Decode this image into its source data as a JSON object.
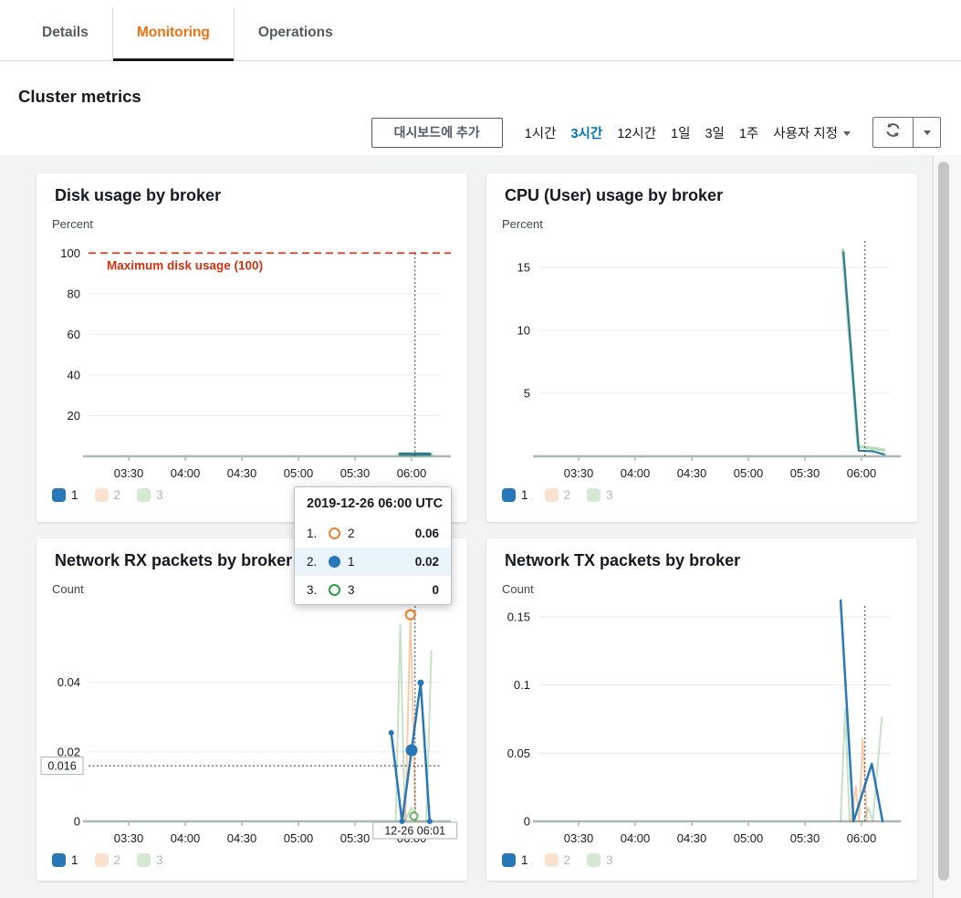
{
  "tabs": [
    {
      "label": "Details",
      "active": false
    },
    {
      "label": "Monitoring",
      "active": true
    },
    {
      "label": "Operations",
      "active": false
    }
  ],
  "page_title": "Cluster metrics",
  "toolbar": {
    "add_button": "대시보드에 추가",
    "ranges": [
      {
        "label": "1시간",
        "active": false
      },
      {
        "label": "3시간",
        "active": true
      },
      {
        "label": "12시간",
        "active": false
      },
      {
        "label": "1일",
        "active": false
      },
      {
        "label": "3일",
        "active": false
      },
      {
        "label": "1주",
        "active": false
      },
      {
        "label": "사용자 지정",
        "active": false,
        "caret": true
      }
    ]
  },
  "colors": {
    "accent_orange": "#ec7211",
    "link_blue": "#0073bb",
    "annotation_red": "#d13212",
    "series1_blue": "#2878b8",
    "series2_orange": "#e8842f",
    "series3_green": "#2f9e41"
  },
  "legend": [
    {
      "label": "1",
      "color": "#2878b8",
      "muted": false
    },
    {
      "label": "2",
      "color": "#fbe2cf",
      "muted": true
    },
    {
      "label": "3",
      "color": "#d3e9d3",
      "muted": true
    }
  ],
  "xaxis": {
    "min": 3.145,
    "max": 6.25,
    "ticks": [
      {
        "v": 3.5,
        "label": "03:30"
      },
      {
        "v": 4.0,
        "label": "04:00"
      },
      {
        "v": 4.5,
        "label": "04:30"
      },
      {
        "v": 5.0,
        "label": "05:00"
      },
      {
        "v": 5.5,
        "label": "05:30"
      },
      {
        "v": 6.0,
        "label": "06:00"
      }
    ]
  },
  "charts": [
    {
      "type": "line",
      "title": "Disk usage by broker",
      "ylabel": "Percent",
      "y": {
        "max": 106,
        "ticks": [
          100,
          80,
          60,
          40,
          20
        ]
      },
      "annotation": {
        "value": 100,
        "label": "Maximum disk usage (100)"
      },
      "crosshair": {
        "t": 6.03
      },
      "series": [
        {
          "name": "3",
          "color": "#74b976",
          "opacity": 0.4,
          "width": 5,
          "points": [
            [
              5.89,
              0.9
            ],
            [
              6.17,
              0.9
            ]
          ]
        },
        {
          "name": "1",
          "color": "#2e7d8c",
          "opacity": 1,
          "width": 3.5,
          "points": [
            [
              5.9,
              1.1
            ],
            [
              6.16,
              1.1
            ]
          ]
        }
      ]
    },
    {
      "type": "line",
      "title": "CPU (User) usage by broker",
      "ylabel": "Percent",
      "y": {
        "max": 17.1,
        "ticks": [
          15,
          10,
          5
        ]
      },
      "crosshair": {
        "t": 6.03
      },
      "series": [
        {
          "name": "3",
          "color": "#74b976",
          "opacity": 0.5,
          "width": 3.5,
          "points": [
            [
              5.835,
              16.4
            ],
            [
              5.97,
              0.8
            ],
            [
              6.2,
              0.5
            ]
          ]
        },
        {
          "name": "1",
          "color": "#2d7b96",
          "opacity": 1,
          "width": 2.2,
          "points": [
            [
              5.84,
              16.2
            ],
            [
              5.975,
              0.45
            ],
            [
              6.1,
              0.4
            ],
            [
              6.2,
              0.15
            ]
          ]
        }
      ]
    },
    {
      "type": "line",
      "title": "Network RX packets by broker",
      "ylabel": "Count",
      "y": {
        "max": 0.062,
        "ticks": [
          0.04,
          0.02,
          0
        ]
      },
      "crosshair": {
        "t": 6.03,
        "h": 0.016,
        "hlabel": "0.016",
        "xlabel": "12-26 06:01"
      },
      "series": [
        {
          "name": "3",
          "color": "#5aab5c",
          "opacity": 0.35,
          "width": 2,
          "points": [
            [
              5.86,
              0
            ],
            [
              5.9,
              0.0565
            ],
            [
              5.94,
              0
            ],
            [
              6.0,
              0.004
            ],
            [
              6.05,
              0
            ],
            [
              6.13,
              0
            ],
            [
              6.175,
              0.049
            ]
          ],
          "markers": [
            {
              "t": 6.02,
              "v": 0.0015,
              "r": 4,
              "type": "open"
            }
          ]
        },
        {
          "name": "2",
          "color": "#e8822e",
          "opacity": 0.4,
          "width": 2,
          "points": [
            [
              5.945,
              0
            ],
            [
              5.99,
              0.0595
            ],
            [
              6.035,
              0
            ]
          ],
          "markers": [
            {
              "t": 5.99,
              "v": 0.0595,
              "r": 5,
              "type": "open"
            }
          ]
        },
        {
          "name": "1",
          "color": "#2878b8",
          "opacity": 1,
          "width": 2.5,
          "points": [
            [
              5.82,
              0.0255
            ],
            [
              5.915,
              0
            ],
            [
              6.0,
              0.0205
            ],
            [
              6.08,
              0.0399
            ],
            [
              6.16,
              0
            ]
          ],
          "markers": [
            {
              "t": 5.82,
              "v": 0.0255,
              "r": 3,
              "type": "filled"
            },
            {
              "t": 5.915,
              "v": 0,
              "r": 3,
              "type": "filled"
            },
            {
              "t": 6.0,
              "v": 0.0205,
              "r": 6.5,
              "type": "filled"
            },
            {
              "t": 6.08,
              "v": 0.0399,
              "r": 3.5,
              "type": "filled"
            },
            {
              "t": 6.16,
              "v": 0,
              "r": 3,
              "type": "filled"
            }
          ]
        }
      ]
    },
    {
      "type": "line",
      "title": "Network TX packets by broker",
      "ylabel": "Count",
      "y": {
        "max": 0.158,
        "ticks": [
          0.15,
          0.1,
          0.05,
          0
        ]
      },
      "crosshair": {
        "t": 6.03
      },
      "series": [
        {
          "name": "3",
          "color": "#5aab5c",
          "opacity": 0.35,
          "width": 2,
          "points": [
            [
              5.815,
              0
            ],
            [
              5.855,
              0.0823
            ],
            [
              5.895,
              0
            ],
            [
              6.02,
              0
            ],
            [
              6.06,
              0.01
            ],
            [
              6.1,
              0
            ],
            [
              6.18,
              0.0763
            ]
          ]
        },
        {
          "name": "2",
          "color": "#e8822e",
          "opacity": 0.4,
          "width": 2,
          "points": [
            [
              5.91,
              0
            ],
            [
              5.95,
              0.026
            ],
            [
              5.98,
              0
            ],
            [
              6.01,
              0.061
            ],
            [
              6.05,
              0
            ]
          ]
        },
        {
          "name": "1",
          "color": "#2878b8",
          "opacity": 1,
          "width": 2.5,
          "points": [
            [
              5.815,
              0.162
            ],
            [
              5.93,
              0
            ],
            [
              6.09,
              0.0422
            ],
            [
              6.186,
              0
            ]
          ]
        }
      ]
    }
  ],
  "tooltip": {
    "title": "2019-12-26 06:00 UTC",
    "rows": [
      {
        "rank": "1.",
        "series": "2",
        "value": "0.06",
        "marker": "open",
        "color": "#e8842f",
        "highlight": false
      },
      {
        "rank": "2.",
        "series": "1",
        "value": "0.02",
        "marker": "filled",
        "color": "#2878b8",
        "highlight": true
      },
      {
        "rank": "3.",
        "series": "3",
        "value": "0",
        "marker": "open",
        "color": "#2f9e41",
        "highlight": false
      }
    ]
  }
}
